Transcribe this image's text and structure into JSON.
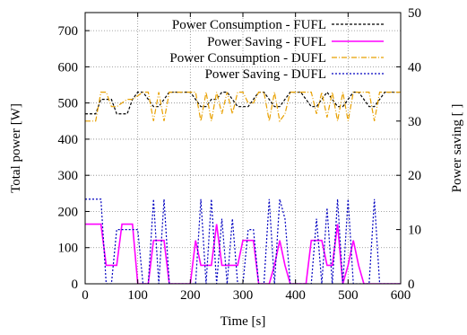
{
  "chart_data": {
    "type": "line",
    "xlabel": "Time [s]",
    "ylabel": "Total power [W]",
    "y2label": "Power saving [ ]",
    "xlim": [
      0,
      600
    ],
    "ylim": [
      0,
      750
    ],
    "y2lim": [
      0,
      50
    ],
    "xticks": [
      "0",
      "100",
      "200",
      "300",
      "400",
      "500",
      "600"
    ],
    "yticks": [
      "0",
      "100",
      "200",
      "300",
      "400",
      "500",
      "600",
      "700"
    ],
    "y2ticks": [
      "0",
      "10",
      "20",
      "30",
      "40",
      "50"
    ],
    "grid": true,
    "legend_position": "top-right",
    "series": [
      {
        "name": "Power Consumption - FUFL",
        "axis": "left",
        "color": "#000000",
        "dash": "3,2",
        "x": [
          0,
          20,
          30,
          40,
          50,
          60,
          70,
          80,
          90,
          100,
          110,
          120,
          130,
          140,
          150,
          160,
          170,
          180,
          190,
          200,
          210,
          220,
          230,
          240,
          250,
          260,
          270,
          280,
          290,
          300,
          310,
          320,
          330,
          340,
          350,
          360,
          370,
          380,
          390,
          400,
          410,
          420,
          430,
          440,
          450,
          460,
          470,
          480,
          490,
          500,
          510,
          520,
          530,
          540,
          550,
          560,
          570,
          580,
          590,
          600
        ],
        "y": [
          470,
          470,
          510,
          510,
          510,
          470,
          470,
          470,
          510,
          530,
          530,
          510,
          490,
          490,
          510,
          530,
          530,
          530,
          530,
          530,
          510,
          490,
          490,
          510,
          510,
          530,
          530,
          510,
          490,
          490,
          490,
          510,
          530,
          530,
          510,
          490,
          490,
          510,
          530,
          530,
          530,
          510,
          490,
          490,
          510,
          530,
          510,
          490,
          490,
          510,
          530,
          530,
          510,
          490,
          490,
          510,
          530,
          530,
          530,
          530
        ]
      },
      {
        "name": "Power Saving - FUFL",
        "axis": "right",
        "color": "#ff00ff",
        "dash": "",
        "x": [
          0,
          20,
          30,
          40,
          50,
          60,
          70,
          80,
          90,
          100,
          110,
          120,
          130,
          140,
          150,
          160,
          170,
          180,
          190,
          200,
          210,
          220,
          230,
          240,
          250,
          260,
          270,
          280,
          290,
          300,
          310,
          320,
          330,
          340,
          350,
          360,
          370,
          380,
          390,
          400,
          410,
          420,
          430,
          440,
          450,
          460,
          470,
          480,
          490,
          500,
          510,
          520,
          530,
          540,
          550,
          560,
          570,
          580,
          590,
          600
        ],
        "y": [
          11,
          11,
          11,
          3.4,
          3.4,
          3.4,
          11,
          11,
          11,
          0,
          0,
          0,
          8,
          8,
          8,
          0,
          0,
          0,
          0,
          0,
          8,
          3.4,
          3.4,
          3.4,
          11,
          3.4,
          3.4,
          3.4,
          3.4,
          8,
          8,
          8,
          0,
          0,
          0,
          3.4,
          8,
          3.4,
          0,
          0,
          0,
          0,
          8,
          8,
          8,
          3.4,
          3.4,
          11,
          0,
          3.4,
          8,
          3.4,
          0,
          0,
          0,
          0,
          0,
          0,
          0,
          0
        ]
      },
      {
        "name": "Power Consumption - DUFL",
        "axis": "left",
        "color": "#e8a000",
        "dash": "6,2,1,2",
        "x": [
          0,
          20,
          30,
          40,
          50,
          60,
          70,
          80,
          90,
          100,
          110,
          120,
          130,
          140,
          150,
          160,
          170,
          180,
          190,
          200,
          210,
          220,
          230,
          240,
          250,
          260,
          270,
          280,
          290,
          300,
          310,
          320,
          330,
          340,
          350,
          360,
          370,
          380,
          390,
          400,
          410,
          420,
          430,
          440,
          450,
          460,
          470,
          480,
          490,
          500,
          510,
          520,
          530,
          540,
          550,
          560,
          570,
          580,
          590,
          600
        ],
        "y": [
          450,
          450,
          530,
          530,
          490,
          490,
          500,
          510,
          510,
          520,
          530,
          530,
          450,
          530,
          450,
          530,
          530,
          530,
          530,
          530,
          530,
          450,
          530,
          450,
          530,
          470,
          530,
          470,
          530,
          530,
          500,
          500,
          530,
          530,
          450,
          530,
          450,
          470,
          530,
          530,
          530,
          530,
          530,
          470,
          530,
          460,
          530,
          450,
          530,
          450,
          530,
          530,
          530,
          530,
          450,
          530,
          530,
          530,
          530,
          530
        ]
      },
      {
        "name": "Power Saving - DUFL",
        "axis": "right",
        "color": "#0000c0",
        "dash": "2,2",
        "x": [
          0,
          20,
          30,
          40,
          50,
          60,
          70,
          80,
          90,
          100,
          110,
          120,
          130,
          140,
          150,
          160,
          170,
          180,
          190,
          200,
          210,
          220,
          230,
          240,
          250,
          260,
          270,
          280,
          290,
          300,
          310,
          320,
          330,
          340,
          350,
          360,
          370,
          380,
          390,
          400,
          410,
          420,
          430,
          440,
          450,
          460,
          470,
          480,
          490,
          500,
          510,
          520,
          530,
          540,
          550,
          560,
          570,
          580,
          590,
          600
        ],
        "y": [
          15.6,
          15.6,
          15.6,
          0,
          0,
          10,
          10,
          10,
          10,
          10,
          0,
          0,
          15.6,
          0,
          15.6,
          0,
          0,
          0,
          0,
          0,
          0,
          15.6,
          0,
          15.6,
          0,
          12,
          0,
          12,
          0,
          0,
          10,
          10,
          0,
          0,
          15.6,
          0,
          15.6,
          12,
          0,
          0,
          0,
          0,
          0,
          12,
          0,
          14,
          0,
          15.6,
          0,
          15.6,
          0,
          0,
          0,
          0,
          15.6,
          0,
          0,
          0,
          0,
          0
        ]
      }
    ]
  }
}
